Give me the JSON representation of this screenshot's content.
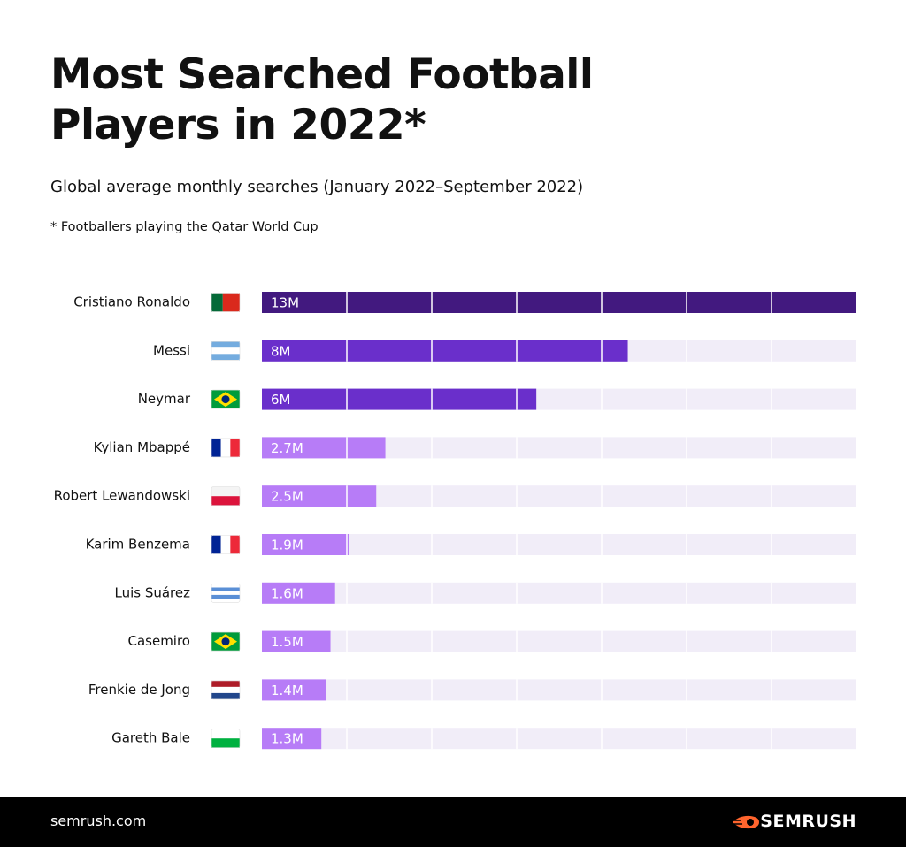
{
  "chart_data": {
    "type": "bar",
    "orientation": "horizontal",
    "title": "Most Searched Football Players in 2022*",
    "subtitle": "Global average monthly searches (January 2022–September 2022)",
    "note": "* Footballers playing the Qatar World Cup",
    "categories": [
      "Cristiano Ronaldo",
      "Messi",
      "Neymar",
      "Kylian Mbappé",
      "Robert Lewandowski",
      "Karim Benzema",
      "Luis Suárez",
      "Casemiro",
      "Frenkie de Jong",
      "Gareth Bale"
    ],
    "values": [
      13000000,
      8000000,
      6000000,
      2700000,
      2500000,
      1900000,
      1600000,
      1500000,
      1400000,
      1300000
    ],
    "value_labels": [
      "13M",
      "8M",
      "6M",
      "2.7M",
      "2.5M",
      "1.9M",
      "1.6M",
      "1.5M",
      "1.4M",
      "1.3M"
    ],
    "colors": [
      "#42197f",
      "#6a2fcb",
      "#6a2fcb",
      "#b77cf7",
      "#b77cf7",
      "#b77cf7",
      "#b77cf7",
      "#b77cf7",
      "#b77cf7",
      "#b77cf7"
    ],
    "track_color": "#f1edf8",
    "xlim": [
      0,
      13000000
    ]
  },
  "footer": {
    "site": "semrush.com",
    "brand": "SEMRUSH"
  }
}
